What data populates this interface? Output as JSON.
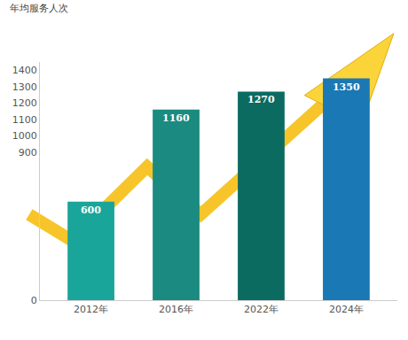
{
  "chart_data": {
    "type": "bar",
    "ylabel": "年均服务人次",
    "categories": [
      "2012年",
      "2016年",
      "2022年",
      "2024年"
    ],
    "values": [
      600,
      1160,
      1270,
      1350
    ],
    "colors": [
      "#1aa59a",
      "#1b8a80",
      "#0b6b61",
      "#1a78b4"
    ],
    "ylim": [
      0,
      1450
    ],
    "yticks": [
      0,
      900,
      1000,
      1100,
      1200,
      1300,
      1400
    ],
    "grid": false,
    "data_labels": true
  }
}
